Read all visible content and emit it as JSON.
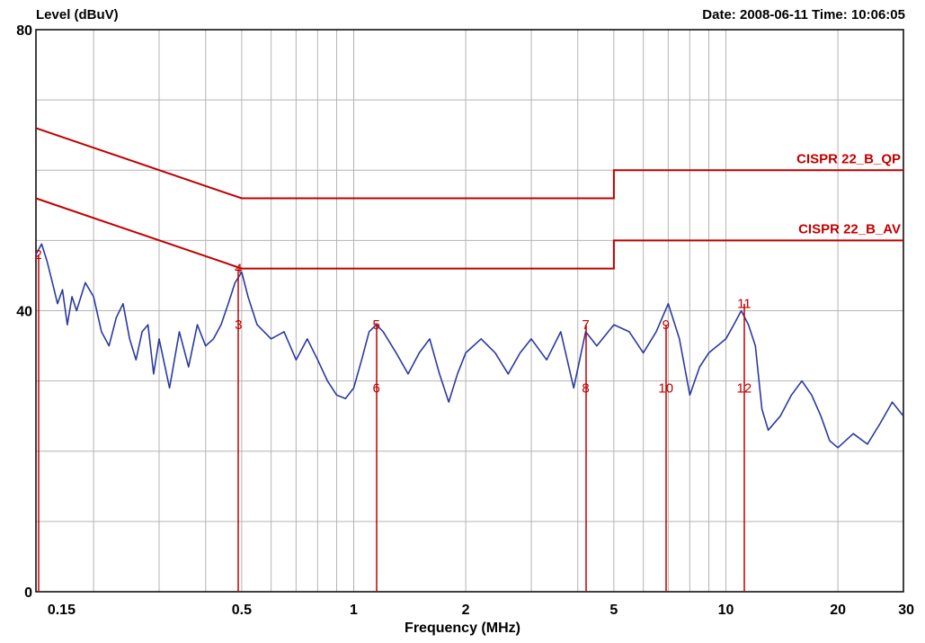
{
  "header": {
    "ylabel": "Level (dBuV)",
    "datetime": "Date: 2008-06-11  Time: 10:06:05"
  },
  "chart_data": {
    "type": "line",
    "xlabel": "Frequency (MHz)",
    "ylabel": "Level (dBuV)",
    "xscale": "log",
    "xlim": [
      0.14,
      30
    ],
    "ylim": [
      0,
      80
    ],
    "grid": true,
    "x_ticks": [
      {
        "v": 0.15,
        "label": "0.15"
      },
      {
        "v": 0.5,
        "label": "0.5"
      },
      {
        "v": 1,
        "label": "1"
      },
      {
        "v": 2,
        "label": "2"
      },
      {
        "v": 5,
        "label": "5"
      },
      {
        "v": 10,
        "label": "10"
      },
      {
        "v": 20,
        "label": "20"
      },
      {
        "v": 30,
        "label": "30"
      }
    ],
    "y_ticks": [
      {
        "v": 0,
        "label": "0"
      },
      {
        "v": 40,
        "label": "40"
      },
      {
        "v": 80,
        "label": "80"
      }
    ],
    "colors": {
      "trace": "#2b3a9f",
      "limit": "#c00000",
      "grid": "#b4b4b4"
    },
    "series": [
      {
        "name": "",
        "color": "#2b3a9f",
        "points": [
          [
            0.14,
            48
          ],
          [
            0.145,
            49.5
          ],
          [
            0.15,
            47
          ],
          [
            0.155,
            44
          ],
          [
            0.16,
            41
          ],
          [
            0.165,
            43
          ],
          [
            0.17,
            38
          ],
          [
            0.175,
            42
          ],
          [
            0.18,
            40
          ],
          [
            0.19,
            44
          ],
          [
            0.2,
            42
          ],
          [
            0.21,
            37
          ],
          [
            0.22,
            35
          ],
          [
            0.23,
            39
          ],
          [
            0.24,
            41
          ],
          [
            0.25,
            36
          ],
          [
            0.26,
            33
          ],
          [
            0.27,
            37
          ],
          [
            0.28,
            38
          ],
          [
            0.29,
            31
          ],
          [
            0.3,
            36
          ],
          [
            0.32,
            29
          ],
          [
            0.34,
            37
          ],
          [
            0.36,
            32
          ],
          [
            0.38,
            38
          ],
          [
            0.4,
            35
          ],
          [
            0.42,
            36
          ],
          [
            0.44,
            38
          ],
          [
            0.46,
            41
          ],
          [
            0.48,
            44
          ],
          [
            0.5,
            45.5
          ],
          [
            0.52,
            42
          ],
          [
            0.55,
            38
          ],
          [
            0.6,
            36
          ],
          [
            0.65,
            37
          ],
          [
            0.7,
            33
          ],
          [
            0.75,
            36
          ],
          [
            0.8,
            33
          ],
          [
            0.85,
            30
          ],
          [
            0.9,
            28
          ],
          [
            0.95,
            27.5
          ],
          [
            1.0,
            29
          ],
          [
            1.05,
            33
          ],
          [
            1.1,
            37
          ],
          [
            1.15,
            38
          ],
          [
            1.2,
            37
          ],
          [
            1.3,
            34
          ],
          [
            1.4,
            31
          ],
          [
            1.5,
            34
          ],
          [
            1.6,
            36
          ],
          [
            1.7,
            31
          ],
          [
            1.8,
            27
          ],
          [
            1.9,
            31
          ],
          [
            2.0,
            34
          ],
          [
            2.2,
            36
          ],
          [
            2.4,
            34
          ],
          [
            2.6,
            31
          ],
          [
            2.8,
            34
          ],
          [
            3.0,
            36
          ],
          [
            3.3,
            33
          ],
          [
            3.6,
            37
          ],
          [
            3.9,
            29
          ],
          [
            4.2,
            37
          ],
          [
            4.5,
            35
          ],
          [
            5.0,
            38
          ],
          [
            5.5,
            37
          ],
          [
            6.0,
            34
          ],
          [
            6.5,
            37
          ],
          [
            7.0,
            41
          ],
          [
            7.5,
            36
          ],
          [
            8.0,
            28
          ],
          [
            8.5,
            32
          ],
          [
            9.0,
            34
          ],
          [
            10.0,
            36
          ],
          [
            10.5,
            38
          ],
          [
            11.0,
            40
          ],
          [
            11.5,
            38
          ],
          [
            12.0,
            35
          ],
          [
            12.5,
            26
          ],
          [
            13.0,
            23
          ],
          [
            14.0,
            25
          ],
          [
            15.0,
            28
          ],
          [
            16.0,
            30
          ],
          [
            17.0,
            28
          ],
          [
            18.0,
            25
          ],
          [
            19.0,
            21.5
          ],
          [
            20.0,
            20.5
          ],
          [
            22.0,
            22.5
          ],
          [
            24.0,
            21
          ],
          [
            26.0,
            24
          ],
          [
            28.0,
            27
          ],
          [
            30.0,
            25
          ]
        ]
      }
    ],
    "limits": [
      {
        "name": "CISPR 22_B_QP",
        "points": [
          [
            0.14,
            66
          ],
          [
            0.5,
            56
          ],
          [
            5.0,
            56
          ],
          [
            5.0,
            60
          ],
          [
            30,
            60
          ]
        ]
      },
      {
        "name": "CISPR 22_B_AV",
        "points": [
          [
            0.14,
            56
          ],
          [
            0.5,
            46
          ],
          [
            5.0,
            46
          ],
          [
            5.0,
            50
          ],
          [
            30,
            50
          ]
        ]
      }
    ],
    "markers": [
      {
        "label": "2",
        "x": 0.142,
        "y": 48
      },
      {
        "label": "4",
        "x": 0.49,
        "y": 46
      },
      {
        "label": "3",
        "x": 0.49,
        "y": 38
      },
      {
        "label": "5",
        "x": 1.15,
        "y": 38
      },
      {
        "label": "6",
        "x": 1.15,
        "y": 29
      },
      {
        "label": "7",
        "x": 4.2,
        "y": 38
      },
      {
        "label": "8",
        "x": 4.2,
        "y": 29
      },
      {
        "label": "9",
        "x": 6.9,
        "y": 38
      },
      {
        "label": "10",
        "x": 6.9,
        "y": 29
      },
      {
        "label": "11",
        "x": 11.2,
        "y": 41
      },
      {
        "label": "12",
        "x": 11.2,
        "y": 29
      }
    ]
  }
}
